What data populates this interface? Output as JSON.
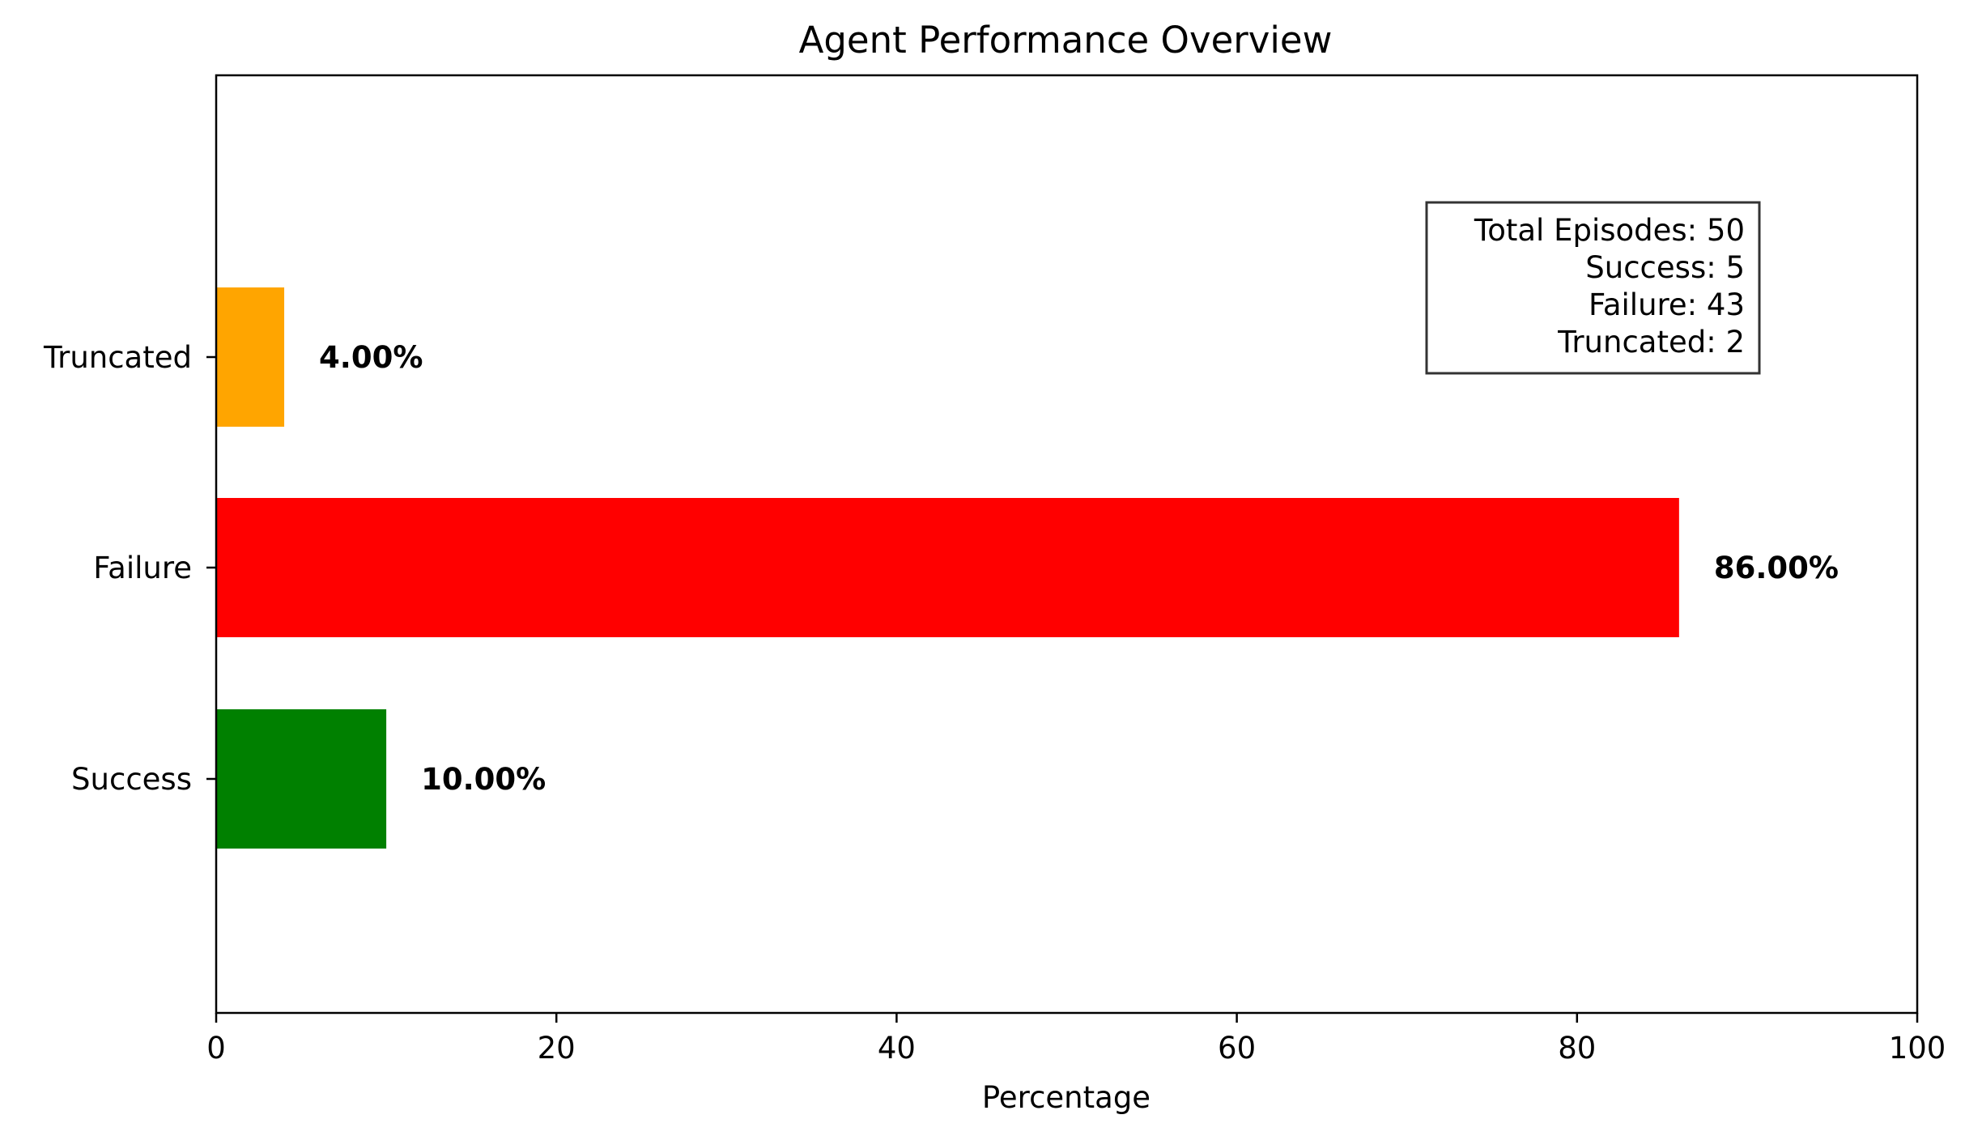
{
  "chart_data": {
    "type": "bar",
    "orientation": "horizontal",
    "title": "Agent Performance Overview",
    "xlabel": "Percentage",
    "ylabel": "",
    "xlim": [
      0,
      100
    ],
    "xticks": [
      0,
      20,
      40,
      60,
      80,
      100
    ],
    "grid": false,
    "categories": [
      "Success",
      "Failure",
      "Truncated"
    ],
    "values": [
      10.0,
      86.0,
      4.0
    ],
    "data_labels": [
      "10.00%",
      "86.00%",
      "4.00%"
    ],
    "colors": [
      "#008000",
      "#ff0000",
      "#ffa500"
    ],
    "stats_box": {
      "placement": "upper-right",
      "lines": [
        "Total Episodes: 50",
        "Success: 5",
        "Failure: 43",
        "Truncated: 2"
      ]
    }
  }
}
